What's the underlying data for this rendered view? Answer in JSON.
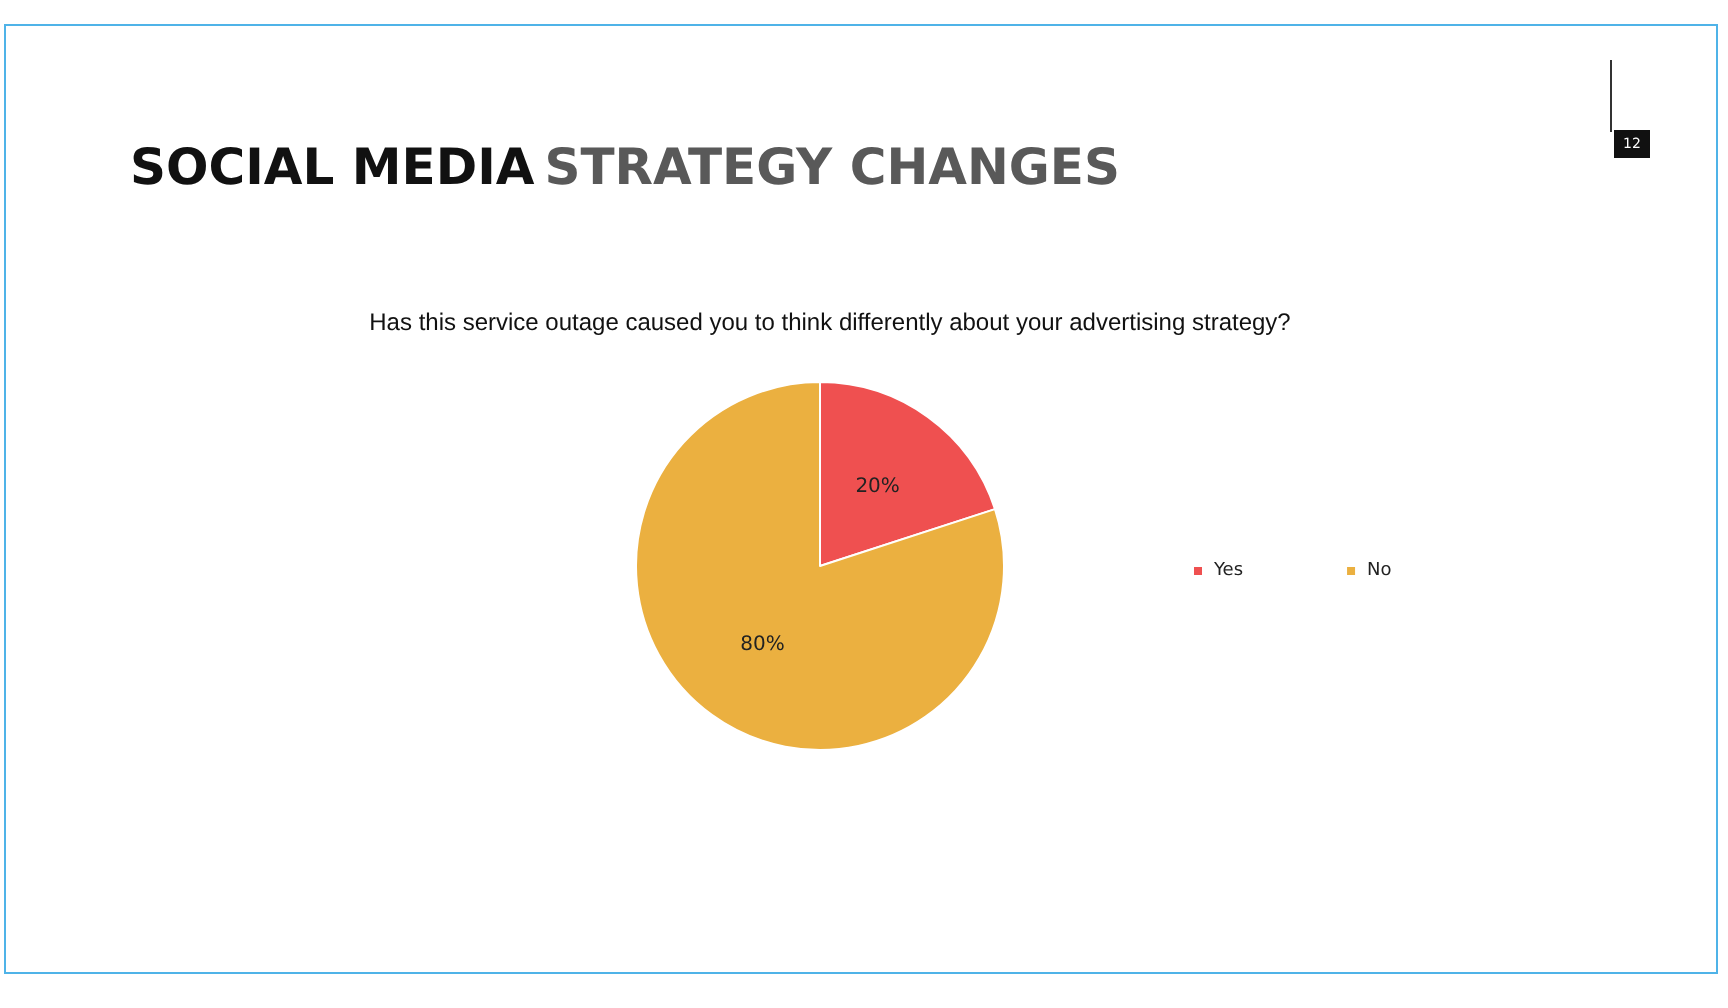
{
  "chart_data": {
    "type": "pie",
    "title": "SOCIAL MEDIA STRATEGY CHANGES",
    "subtitle": "Has this service outage caused you to think differently about your advertising strategy?",
    "categories": [
      "Yes",
      "No"
    ],
    "values": [
      20,
      80
    ],
    "colors": [
      "#ef5050",
      "#ebb040"
    ],
    "value_labels": [
      "20%",
      "80%"
    ],
    "legend": "right",
    "annotations": [
      "12"
    ]
  }
}
